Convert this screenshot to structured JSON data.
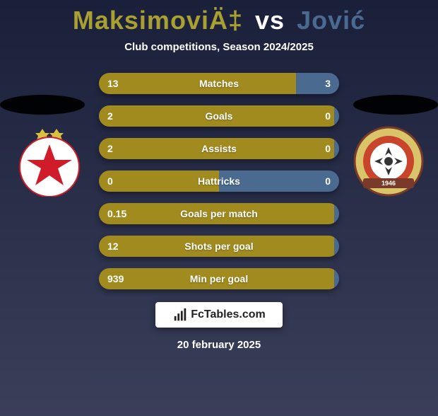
{
  "header": {
    "player1": "MaksimoviÄ‡",
    "vs": "vs",
    "player2": "Jović",
    "player1_color": "#a8a030",
    "player2_color": "#4a6a90",
    "subtitle": "Club competitions, Season 2024/2025"
  },
  "crests": {
    "left": {
      "bg": "#ffffff",
      "star_fill": "#d01c2a",
      "star_stroke": "#d01c2a",
      "outline": "#d9c040"
    },
    "right": {
      "bg": "#d9c46a",
      "inner": "#ffffff",
      "accent": "#c8442a",
      "band": "#7a3a2a"
    }
  },
  "stats": {
    "bar_color_left": "#a28b1e",
    "bar_color_right": "#4a6a90",
    "label_color": "#ffffff",
    "rows": [
      {
        "label": "Matches",
        "left": "13",
        "right": "3",
        "left_pct": 82
      },
      {
        "label": "Goals",
        "left": "2",
        "right": "0",
        "left_pct": 98
      },
      {
        "label": "Assists",
        "left": "2",
        "right": "0",
        "left_pct": 98
      },
      {
        "label": "Hattricks",
        "left": "0",
        "right": "0",
        "left_pct": 50
      },
      {
        "label": "Goals per match",
        "left": "0.15",
        "right": "",
        "left_pct": 98
      },
      {
        "label": "Shots per goal",
        "left": "12",
        "right": "",
        "left_pct": 98
      },
      {
        "label": "Min per goal",
        "left": "939",
        "right": "",
        "left_pct": 98
      }
    ]
  },
  "brand": {
    "name": "FcTables.com",
    "icon_color": "#222222"
  },
  "footer": {
    "date": "20 february 2025"
  }
}
